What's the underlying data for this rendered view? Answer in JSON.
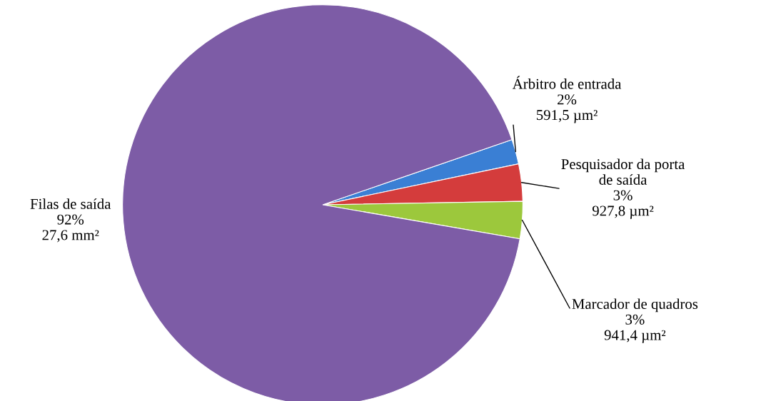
{
  "chart_data": {
    "type": "pie",
    "categories": [
      "Árbitro de entrada",
      "Pesquisador da porta de saída",
      "Marcador de quadros",
      "Filas de saída"
    ],
    "values": [
      2,
      3,
      3,
      92
    ],
    "value_labels": [
      "2%\n591,5 µm²",
      "3%\n927,8 µm²",
      "3%\n941,4 µm²",
      "92%\n27,6 mm²"
    ],
    "colors": [
      "#3a7fd4",
      "#d43c3c",
      "#9cc83c",
      "#7d5ca6"
    ],
    "legend": false
  }
}
